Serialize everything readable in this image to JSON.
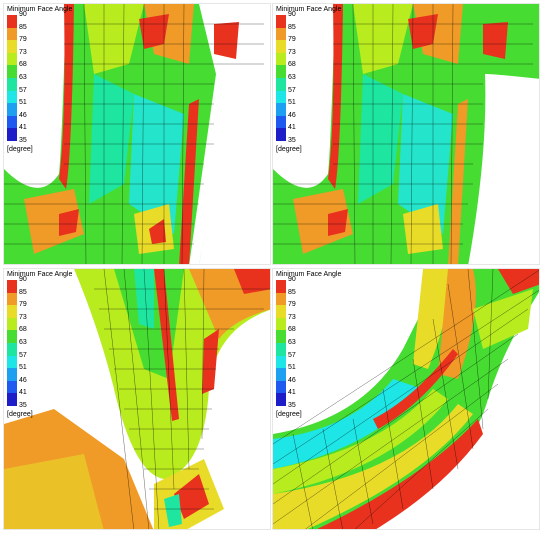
{
  "legend": {
    "title": "Minimum Face Angle",
    "ticks": [
      "90",
      "85",
      "79",
      "73",
      "68",
      "63",
      "57",
      "51",
      "46",
      "41",
      "35"
    ],
    "colors": [
      "#e8321e",
      "#f09a28",
      "#e8dc28",
      "#b8ec1e",
      "#46dc32",
      "#1ee6a0",
      "#1ee6e6",
      "#1ea0f0",
      "#1e5af0",
      "#1e1ec8"
    ],
    "units": "[degree]"
  },
  "panels": [
    {
      "legend_title": "Minimum Face Angle",
      "units": "[degree]"
    },
    {
      "legend_title": "Minimum Face Angle",
      "units": "[degree]"
    },
    {
      "legend_title": "Minimum Face Angle",
      "units": "[degree]"
    },
    {
      "legend_title": "Minimum Face Angle",
      "units": "[degree]"
    }
  ]
}
